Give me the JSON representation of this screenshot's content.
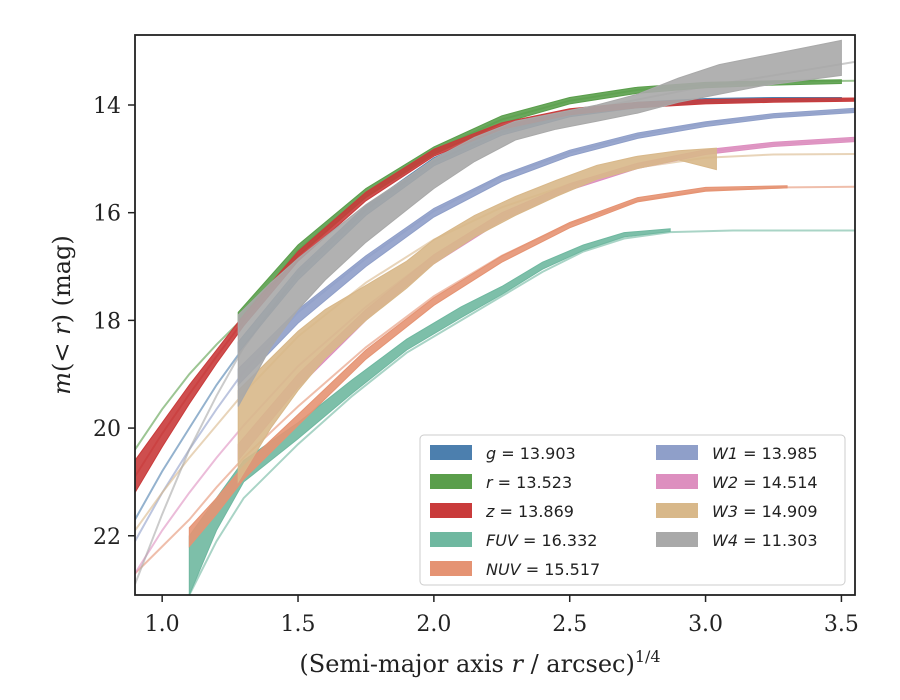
{
  "chart_data": {
    "type": "line",
    "xlabel": "(Semi-major axis r / arcsec)",
    "xlabel_main": "(Semi-major axis ",
    "xlabel_r": "r",
    "xlabel_tail": " / arcsec)",
    "xlabel_exp": "1/4",
    "ylabel_m": "m",
    "ylabel_open": "(< ",
    "ylabel_r": "r",
    "ylabel_close": ") (mag)",
    "xlim": [
      0.9,
      3.55
    ],
    "ylim": [
      23.1,
      12.7
    ],
    "y_inverted": true,
    "grid": false,
    "legend_position": "lower-right",
    "x_ticks": [
      1.0,
      1.5,
      2.0,
      2.5,
      3.0,
      3.5
    ],
    "x_tick_labels": [
      "1.0",
      "1.5",
      "2.0",
      "2.5",
      "3.0",
      "3.5"
    ],
    "y_ticks": [
      14,
      16,
      18,
      20,
      22
    ],
    "y_tick_labels": [
      "14",
      "16",
      "18",
      "20",
      "22"
    ],
    "series": [
      {
        "band": [
          [
            1.28,
            18.6,
            18.4
          ],
          [
            1.5,
            17.25,
            17.05
          ],
          [
            1.75,
            16.05,
            15.87
          ],
          [
            2.0,
            15.13,
            14.98
          ],
          [
            2.25,
            14.56,
            14.42
          ],
          [
            2.5,
            14.22,
            14.1
          ],
          [
            2.75,
            14.05,
            13.95
          ],
          [
            3.0,
            13.97,
            13.88
          ],
          [
            3.25,
            13.93,
            13.86
          ],
          [
            3.5,
            13.92,
            13.86
          ]
        ],
        "value": "13.903",
        "color": "#4c7fae",
        "band_x": [
          1.28,
          3.5
        ],
        "model": [
          [
            0.9,
            21.7
          ],
          [
            1.0,
            20.8
          ],
          [
            1.1,
            20.0
          ],
          [
            1.2,
            19.2
          ],
          [
            1.3,
            18.5
          ],
          [
            1.5,
            17.15
          ],
          [
            1.75,
            15.95
          ],
          [
            2.0,
            15.05
          ],
          [
            2.25,
            14.5
          ],
          [
            2.5,
            14.16
          ],
          [
            2.75,
            14.0
          ],
          [
            3.0,
            13.93
          ],
          [
            3.25,
            13.91
          ],
          [
            3.55,
            13.9
          ]
        ]
      },
      {
        "band": [
          [
            1.28,
            18.05,
            17.85
          ],
          [
            1.5,
            16.8,
            16.6
          ],
          [
            1.75,
            15.72,
            15.55
          ],
          [
            2.0,
            14.92,
            14.78
          ],
          [
            2.25,
            14.34,
            14.2
          ],
          [
            2.5,
            13.98,
            13.86
          ],
          [
            2.75,
            13.78,
            13.67
          ],
          [
            3.0,
            13.68,
            13.58
          ],
          [
            3.25,
            13.63,
            13.55
          ],
          [
            3.5,
            13.6,
            13.53
          ]
        ],
        "value": "13.523",
        "color": "#5a9e4b",
        "band_x": [
          1.28,
          3.5
        ],
        "model": [
          [
            0.9,
            20.4
          ],
          [
            1.0,
            19.65
          ],
          [
            1.1,
            19.0
          ],
          [
            1.2,
            18.45
          ],
          [
            1.3,
            17.95
          ],
          [
            1.5,
            16.7
          ],
          [
            1.75,
            15.64
          ],
          [
            2.0,
            14.85
          ],
          [
            2.25,
            14.27
          ],
          [
            2.5,
            13.92
          ],
          [
            2.75,
            13.72
          ],
          [
            3.0,
            13.62
          ],
          [
            3.25,
            13.57
          ],
          [
            3.55,
            13.55
          ]
        ]
      },
      {
        "band": [
          [
            0.9,
            21.2,
            20.6
          ],
          [
            1.0,
            20.35,
            19.9
          ],
          [
            1.1,
            19.55,
            19.2
          ],
          [
            1.2,
            18.8,
            18.55
          ],
          [
            1.3,
            18.1,
            17.9
          ],
          [
            1.5,
            16.9,
            16.72
          ],
          [
            1.75,
            15.78,
            15.62
          ],
          [
            2.0,
            14.95,
            14.82
          ],
          [
            2.25,
            14.45,
            14.33
          ],
          [
            2.5,
            14.18,
            14.07
          ],
          [
            2.75,
            14.05,
            13.95
          ],
          [
            3.0,
            13.98,
            13.9
          ],
          [
            3.25,
            13.95,
            13.88
          ],
          [
            3.55,
            13.93,
            13.87
          ]
        ],
        "value": "13.869",
        "color": "#c93b3b",
        "band_x": [
          0.9,
          3.55
        ],
        "model": [
          [
            0.9,
            20.9
          ],
          [
            1.0,
            20.1
          ],
          [
            1.1,
            19.37
          ],
          [
            1.2,
            18.67
          ],
          [
            1.3,
            18.0
          ],
          [
            1.5,
            16.81
          ],
          [
            1.75,
            15.7
          ],
          [
            2.0,
            14.88
          ],
          [
            2.25,
            14.39
          ],
          [
            2.5,
            14.12
          ],
          [
            2.75,
            14.0
          ],
          [
            3.0,
            13.94
          ],
          [
            3.25,
            13.91
          ],
          [
            3.55,
            13.9
          ]
        ]
      },
      {
        "band": [
          [
            1.1,
            23.1,
            22.0
          ],
          [
            1.2,
            21.9,
            21.3
          ],
          [
            1.3,
            21.0,
            20.6
          ],
          [
            1.5,
            20.2,
            19.9
          ],
          [
            1.7,
            19.35,
            19.1
          ],
          [
            1.9,
            18.55,
            18.35
          ],
          [
            2.1,
            17.95,
            17.75
          ],
          [
            2.25,
            17.52,
            17.37
          ],
          [
            2.4,
            17.05,
            16.92
          ],
          [
            2.55,
            16.7,
            16.6
          ],
          [
            2.7,
            16.45,
            16.37
          ],
          [
            2.87,
            16.35,
            16.3
          ]
        ],
        "value": "16.332",
        "color": "#6fb8a0",
        "band_x": [
          1.1,
          2.87
        ],
        "model": [
          [
            1.1,
            23.1
          ],
          [
            1.2,
            22.1
          ],
          [
            1.3,
            21.3
          ],
          [
            1.5,
            20.3
          ],
          [
            1.7,
            19.4
          ],
          [
            1.9,
            18.6
          ],
          [
            2.1,
            18.0
          ],
          [
            2.25,
            17.55
          ],
          [
            2.4,
            17.1
          ],
          [
            2.55,
            16.72
          ],
          [
            2.7,
            16.48
          ],
          [
            2.87,
            16.36
          ],
          [
            3.1,
            16.33
          ],
          [
            3.55,
            16.33
          ]
        ]
      },
      {
        "band": [
          [
            1.1,
            22.2,
            21.85
          ],
          [
            1.2,
            21.6,
            21.3
          ],
          [
            1.3,
            20.95,
            20.7
          ],
          [
            1.5,
            19.95,
            19.75
          ],
          [
            1.75,
            18.72,
            18.55
          ],
          [
            2.0,
            17.72,
            17.58
          ],
          [
            2.25,
            16.92,
            16.8
          ],
          [
            2.5,
            16.28,
            16.18
          ],
          [
            2.75,
            15.8,
            15.72
          ],
          [
            3.0,
            15.6,
            15.53
          ],
          [
            3.3,
            15.54,
            15.5
          ]
        ],
        "value": "15.517",
        "color": "#e59373",
        "band_x": [
          1.1,
          3.3
        ],
        "model": [
          [
            0.9,
            22.7
          ],
          [
            1.0,
            22.2
          ],
          [
            1.1,
            21.7
          ],
          [
            1.2,
            21.1
          ],
          [
            1.3,
            20.55
          ],
          [
            1.5,
            19.6
          ],
          [
            1.75,
            18.5
          ],
          [
            2.0,
            17.55
          ],
          [
            2.25,
            16.8
          ],
          [
            2.5,
            16.2
          ],
          [
            2.75,
            15.78
          ],
          [
            3.0,
            15.58
          ],
          [
            3.3,
            15.53
          ],
          [
            3.55,
            15.52
          ]
        ]
      },
      {
        "band": [
          [
            1.28,
            19.2,
            18.9
          ],
          [
            1.5,
            18.05,
            17.8
          ],
          [
            1.75,
            17.0,
            16.8
          ],
          [
            2.0,
            16.08,
            15.92
          ],
          [
            2.25,
            15.42,
            15.3
          ],
          [
            2.5,
            14.95,
            14.84
          ],
          [
            2.75,
            14.62,
            14.52
          ],
          [
            3.0,
            14.4,
            14.31
          ],
          [
            3.25,
            14.24,
            14.16
          ],
          [
            3.55,
            14.14,
            14.06
          ]
        ],
        "value": "13.985",
        "color": "#8f9fc9",
        "band_x": [
          1.28,
          3.55
        ],
        "model": [
          [
            0.9,
            22.1
          ],
          [
            1.0,
            21.2
          ],
          [
            1.1,
            20.4
          ],
          [
            1.2,
            19.65
          ],
          [
            1.3,
            18.95
          ],
          [
            1.5,
            17.85
          ],
          [
            1.75,
            16.85
          ],
          [
            2.0,
            15.97
          ],
          [
            2.25,
            15.33
          ],
          [
            2.5,
            14.88
          ],
          [
            2.75,
            14.56
          ],
          [
            3.0,
            14.34
          ],
          [
            3.25,
            14.2
          ],
          [
            3.55,
            14.1
          ]
        ]
      },
      {
        "band": [
          [
            1.28,
            20.6,
            20.3
          ],
          [
            1.5,
            19.25,
            19.0
          ],
          [
            1.75,
            18.0,
            17.8
          ],
          [
            2.0,
            16.95,
            16.78
          ],
          [
            2.25,
            16.15,
            16.0
          ],
          [
            2.5,
            15.58,
            15.46
          ],
          [
            2.75,
            15.18,
            15.08
          ],
          [
            3.0,
            14.92,
            14.83
          ],
          [
            3.25,
            14.77,
            14.69
          ],
          [
            3.55,
            14.68,
            14.6
          ]
        ],
        "value": "14.514",
        "color": "#dd8fbf",
        "band_x": [
          1.28,
          3.55
        ],
        "model": [
          [
            0.9,
            22.7
          ],
          [
            1.0,
            21.9
          ],
          [
            1.1,
            21.2
          ],
          [
            1.2,
            20.55
          ],
          [
            1.3,
            19.95
          ],
          [
            1.5,
            18.85
          ],
          [
            1.75,
            17.75
          ],
          [
            2.0,
            16.8
          ],
          [
            2.25,
            16.05
          ],
          [
            2.5,
            15.5
          ],
          [
            2.75,
            15.12
          ],
          [
            3.0,
            14.87
          ],
          [
            3.25,
            14.73
          ],
          [
            3.55,
            14.64
          ]
        ]
      },
      {
        "band": [
          [
            1.28,
            21.0,
            19.3
          ],
          [
            1.4,
            20.0,
            18.7
          ],
          [
            1.5,
            19.3,
            18.2
          ],
          [
            1.6,
            18.7,
            17.8
          ],
          [
            1.75,
            18.0,
            17.35
          ],
          [
            1.9,
            17.4,
            16.9
          ],
          [
            2.0,
            16.95,
            16.5
          ],
          [
            2.15,
            16.45,
            16.05
          ],
          [
            2.3,
            16.05,
            15.7
          ],
          [
            2.45,
            15.7,
            15.4
          ],
          [
            2.6,
            15.38,
            15.12
          ],
          [
            2.75,
            15.18,
            14.95
          ],
          [
            2.9,
            15.02,
            14.85
          ],
          [
            3.04,
            15.2,
            14.8
          ]
        ],
        "value": "14.909",
        "color": "#d8b88a",
        "band_x": [
          1.28,
          3.04
        ],
        "model": [
          [
            0.9,
            21.9
          ],
          [
            1.0,
            21.2
          ],
          [
            1.1,
            20.55
          ],
          [
            1.2,
            19.95
          ],
          [
            1.3,
            19.35
          ],
          [
            1.5,
            18.3
          ],
          [
            1.75,
            17.3
          ],
          [
            2.0,
            16.5
          ],
          [
            2.25,
            15.9
          ],
          [
            2.5,
            15.47
          ],
          [
            2.75,
            15.16
          ],
          [
            3.0,
            14.98
          ],
          [
            3.25,
            14.92
          ],
          [
            3.55,
            14.91
          ]
        ]
      },
      {
        "band": [
          [
            1.28,
            19.6,
            17.9
          ],
          [
            1.4,
            18.5,
            17.3
          ],
          [
            1.5,
            17.8,
            16.85
          ],
          [
            1.6,
            17.25,
            16.45
          ],
          [
            1.75,
            16.55,
            15.85
          ],
          [
            1.9,
            15.95,
            15.35
          ],
          [
            2.0,
            15.55,
            15.0
          ],
          [
            2.15,
            15.05,
            14.6
          ],
          [
            2.3,
            14.65,
            14.3
          ],
          [
            2.45,
            14.45,
            14.15
          ],
          [
            2.6,
            14.3,
            14.0
          ],
          [
            2.75,
            14.15,
            13.8
          ],
          [
            2.9,
            13.95,
            13.5
          ],
          [
            3.05,
            13.8,
            13.25
          ],
          [
            3.2,
            13.65,
            13.1
          ],
          [
            3.35,
            13.55,
            12.95
          ],
          [
            3.5,
            13.45,
            12.8
          ]
        ],
        "value": "11.303",
        "color": "#a9a9a9",
        "band_x": [
          1.28,
          3.5
        ],
        "model": [
          [
            0.9,
            22.9
          ],
          [
            1.0,
            21.6
          ],
          [
            1.1,
            20.4
          ],
          [
            1.2,
            19.4
          ],
          [
            1.3,
            18.5
          ],
          [
            1.5,
            17.1
          ],
          [
            1.75,
            15.9
          ],
          [
            2.0,
            15.05
          ],
          [
            2.25,
            14.5
          ],
          [
            2.5,
            14.15
          ],
          [
            2.75,
            13.9
          ],
          [
            3.0,
            13.65
          ],
          [
            3.25,
            13.45
          ],
          [
            3.55,
            13.2
          ]
        ]
      }
    ]
  },
  "legend": {
    "col1": [
      {
        "name": "g",
        "value": "13.903",
        "color": "#4c7fae"
      },
      {
        "name": "r",
        "value": "13.523",
        "color": "#5a9e4b"
      },
      {
        "name": "z",
        "value": "13.869",
        "color": "#c93b3b"
      },
      {
        "name": "FUV",
        "value": "16.332",
        "color": "#6fb8a0"
      },
      {
        "name": "NUV",
        "value": "15.517",
        "color": "#e59373"
      }
    ],
    "col2": [
      {
        "name": "W1",
        "value": "13.985",
        "color": "#8f9fc9"
      },
      {
        "name": "W2",
        "value": "14.514",
        "color": "#dd8fbf"
      },
      {
        "name": "W3",
        "value": "14.909",
        "color": "#d8b88a"
      },
      {
        "name": "W4",
        "value": "11.303",
        "color": "#a9a9a9"
      }
    ]
  }
}
